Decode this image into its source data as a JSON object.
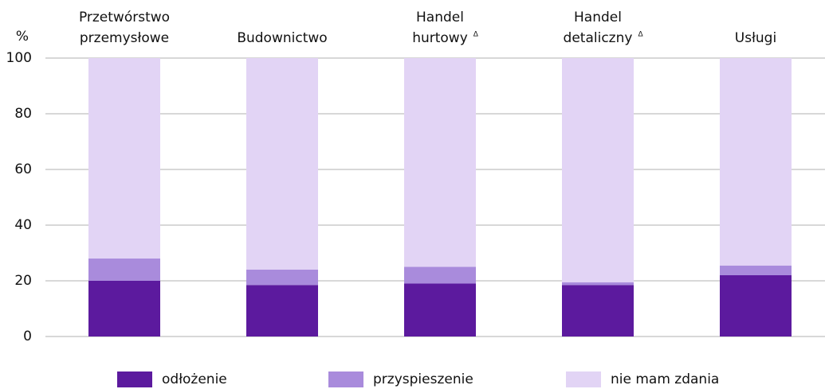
{
  "chart_data": {
    "type": "bar",
    "stacked": true,
    "y_label": "%",
    "categories": [
      "Przetwórstwo\nprzemysłowe",
      "Budownictwo",
      "Handel\nhurtowy",
      "Handel\ndetaliczny",
      "Usługi"
    ],
    "category_notes": [
      null,
      null,
      "Δ",
      "Δ",
      null
    ],
    "series": [
      {
        "name": "odłożenie",
        "color": "#5c1a9e",
        "values": [
          20,
          18.5,
          19,
          18.5,
          22
        ]
      },
      {
        "name": "przyspieszenie",
        "color": "#a98bdc",
        "values": [
          8,
          5.5,
          6,
          1,
          3.5
        ]
      },
      {
        "name": "nie mam zdania",
        "color": "#e2d4f5",
        "values": [
          72,
          76,
          75,
          80.5,
          74.5
        ]
      }
    ],
    "ylim": [
      0,
      100
    ],
    "yticks": [
      0,
      20,
      40,
      60,
      80,
      100
    ],
    "grid": true
  }
}
